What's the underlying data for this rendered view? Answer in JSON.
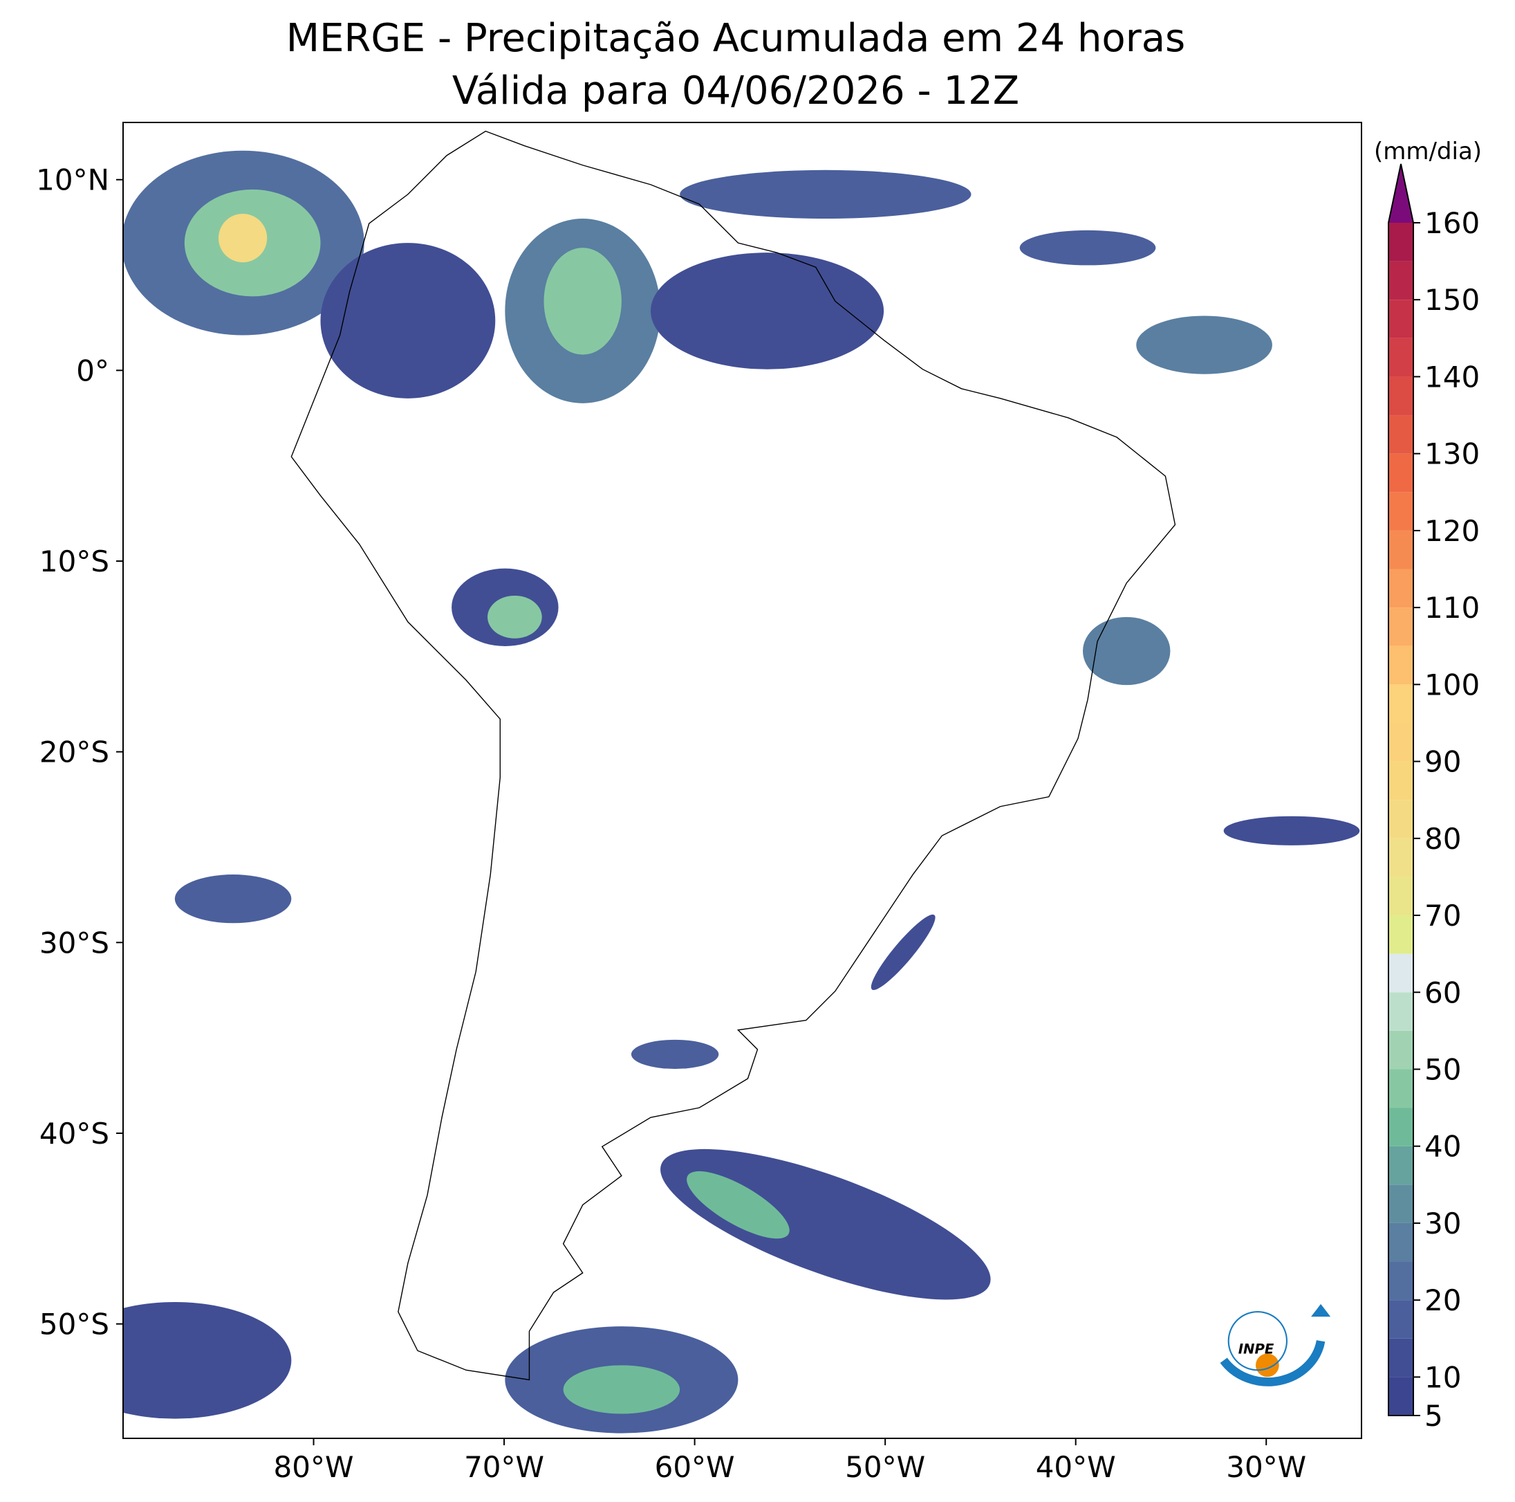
{
  "chart_data": {
    "type": "map",
    "title": "MERGE - Precipitação Acumulada em 24 horas",
    "subtitle": "Válida para 04/06/2026 - 12Z",
    "xlim": [
      -90,
      -25
    ],
    "ylim": [
      -56,
      13
    ],
    "xticks": [
      {
        "value": -80,
        "label": "80°W"
      },
      {
        "value": -70,
        "label": "70°W"
      },
      {
        "value": -60,
        "label": "60°W"
      },
      {
        "value": -50,
        "label": "50°W"
      },
      {
        "value": -40,
        "label": "40°W"
      },
      {
        "value": -30,
        "label": "30°W"
      }
    ],
    "yticks": [
      {
        "value": 10,
        "label": "10°N"
      },
      {
        "value": 0,
        "label": "0°"
      },
      {
        "value": -10,
        "label": "10°S"
      },
      {
        "value": -20,
        "label": "20°S"
      },
      {
        "value": -30,
        "label": "30°S"
      },
      {
        "value": -40,
        "label": "40°S"
      },
      {
        "value": -50,
        "label": "50°S"
      }
    ],
    "colorbar": {
      "label": "(mm/dia)",
      "levels": [
        5,
        10,
        15,
        20,
        25,
        30,
        35,
        40,
        45,
        50,
        55,
        60,
        65,
        70,
        75,
        80,
        85,
        90,
        95,
        100,
        105,
        110,
        115,
        120,
        125,
        130,
        135,
        140,
        145,
        150,
        155,
        160
      ],
      "ticks": [
        5,
        10,
        20,
        30,
        40,
        50,
        60,
        70,
        80,
        90,
        100,
        110,
        120,
        130,
        140,
        150,
        160
      ],
      "colors": [
        "#3b4590",
        "#414e94",
        "#4a5f9c",
        "#536fa0",
        "#5a7fa1",
        "#5f8f9f",
        "#66a39e",
        "#6fbb99",
        "#87c8a2",
        "#a1d3b3",
        "#bcdfcb",
        "#dde9ed",
        "#e1ec8c",
        "#eae58a",
        "#f0e08a",
        "#f4da82",
        "#f8d67c",
        "#fbd27b",
        "#fcd27a",
        "#fcc06e",
        "#fbae65",
        "#f99e5c",
        "#f68b52",
        "#f47a4a",
        "#ef6944",
        "#e55a43",
        "#dc4b44",
        "#d23f46",
        "#c63247",
        "#b82749",
        "#a81b4a"
      ],
      "extend_color": "#7b0b7a"
    }
  },
  "logo": {
    "text": "INPE"
  }
}
